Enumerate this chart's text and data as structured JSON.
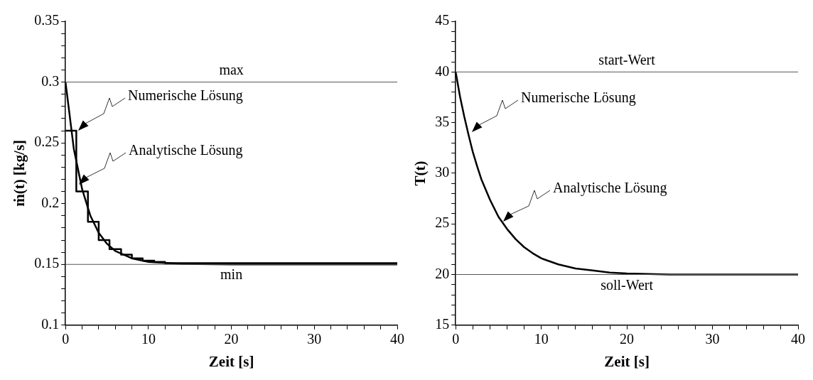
{
  "chart_data": [
    {
      "type": "line",
      "xlabel": "Zeit [s]",
      "ylabel": "ṁ(t) [kg/s]",
      "xlim": [
        0,
        40
      ],
      "ylim": [
        0.1,
        0.35
      ],
      "xticks": [
        0,
        {
          "value": 2,
          "label": null
        },
        {
          "value": 4,
          "label": null
        },
        {
          "value": 6,
          "label": null
        },
        {
          "value": 8,
          "label": null
        },
        10,
        {
          "value": 12,
          "label": null
        },
        {
          "value": 14,
          "label": null
        },
        {
          "value": 16,
          "label": null
        },
        {
          "value": 18,
          "label": null
        },
        20,
        {
          "value": 22,
          "label": null
        },
        {
          "value": 24,
          "label": null
        },
        {
          "value": 26,
          "label": null
        },
        {
          "value": 28,
          "label": null
        },
        30,
        {
          "value": 32,
          "label": null
        },
        {
          "value": 34,
          "label": null
        },
        {
          "value": 36,
          "label": null
        },
        {
          "value": 38,
          "label": null
        },
        40
      ],
      "yticks": [
        0.1,
        {
          "value": 0.11,
          "label": null
        },
        {
          "value": 0.12,
          "label": null
        },
        {
          "value": 0.13,
          "label": null
        },
        {
          "value": 0.14,
          "label": null
        },
        0.15,
        {
          "value": 0.16,
          "label": null
        },
        {
          "value": 0.17,
          "label": null
        },
        {
          "value": 0.18,
          "label": null
        },
        {
          "value": 0.19,
          "label": null
        },
        0.2,
        {
          "value": 0.21,
          "label": null
        },
        {
          "value": 0.22,
          "label": null
        },
        {
          "value": 0.23,
          "label": null
        },
        {
          "value": 0.24,
          "label": null
        },
        0.25,
        {
          "value": 0.26,
          "label": null
        },
        {
          "value": 0.27,
          "label": null
        },
        {
          "value": 0.28,
          "label": null
        },
        {
          "value": 0.29,
          "label": null
        },
        0.3,
        {
          "value": 0.31,
          "label": null
        },
        {
          "value": 0.32,
          "label": null
        },
        {
          "value": 0.33,
          "label": null
        },
        {
          "value": 0.34,
          "label": null
        },
        0.35
      ],
      "grid": false,
      "legend": false,
      "marker": "none",
      "line_style": "solid",
      "series": [
        {
          "type": "step",
          "color": "#000000",
          "x": [
            0,
            1.3,
            2.7,
            4,
            5.3,
            6.7,
            8,
            9.3,
            10.7,
            12,
            40
          ],
          "values": [
            0.26,
            0.21,
            0.185,
            0.17,
            0.1625,
            0.158,
            0.155,
            0.153,
            0.152,
            0.151,
            0.15
          ]
        },
        {
          "type": "line",
          "color": "#000000",
          "x": [
            0,
            1,
            2,
            3,
            4,
            5,
            6,
            8,
            10,
            14,
            20,
            40
          ],
          "values": [
            0.3,
            0.245,
            0.212,
            0.19,
            0.176,
            0.167,
            0.161,
            0.155,
            0.152,
            0.1505,
            0.15,
            0.15
          ]
        }
      ],
      "ref_lines": [
        {
          "axis": "y",
          "value": 0.3,
          "label": "max"
        },
        {
          "axis": "y",
          "value": 0.15,
          "label": "min"
        }
      ],
      "annotations": [
        "Numerische Lösung",
        "Analytische Lösung"
      ]
    },
    {
      "type": "line",
      "xlabel": "Zeit [s]",
      "ylabel": "T(t)",
      "xlim": [
        0,
        40
      ],
      "ylim": [
        15,
        45
      ],
      "xticks": [
        0,
        {
          "value": 2,
          "label": null
        },
        {
          "value": 4,
          "label": null
        },
        {
          "value": 6,
          "label": null
        },
        {
          "value": 8,
          "label": null
        },
        10,
        {
          "value": 12,
          "label": null
        },
        {
          "value": 14,
          "label": null
        },
        {
          "value": 16,
          "label": null
        },
        {
          "value": 18,
          "label": null
        },
        20,
        {
          "value": 22,
          "label": null
        },
        {
          "value": 24,
          "label": null
        },
        {
          "value": 26,
          "label": null
        },
        {
          "value": 28,
          "label": null
        },
        30,
        {
          "value": 32,
          "label": null
        },
        {
          "value": 34,
          "label": null
        },
        {
          "value": 36,
          "label": null
        },
        {
          "value": 38,
          "label": null
        },
        40
      ],
      "yticks": [
        15,
        {
          "value": 16,
          "label": null
        },
        {
          "value": 17,
          "label": null
        },
        {
          "value": 18,
          "label": null
        },
        {
          "value": 19,
          "label": null
        },
        20,
        {
          "value": 21,
          "label": null
        },
        {
          "value": 22,
          "label": null
        },
        {
          "value": 23,
          "label": null
        },
        {
          "value": 24,
          "label": null
        },
        25,
        {
          "value": 26,
          "label": null
        },
        {
          "value": 27,
          "label": null
        },
        {
          "value": 28,
          "label": null
        },
        {
          "value": 29,
          "label": null
        },
        30,
        {
          "value": 31,
          "label": null
        },
        {
          "value": 32,
          "label": null
        },
        {
          "value": 33,
          "label": null
        },
        {
          "value": 34,
          "label": null
        },
        35,
        {
          "value": 36,
          "label": null
        },
        {
          "value": 37,
          "label": null
        },
        {
          "value": 38,
          "label": null
        },
        {
          "value": 39,
          "label": null
        },
        40,
        {
          "value": 41,
          "label": null
        },
        {
          "value": 42,
          "label": null
        },
        {
          "value": 43,
          "label": null
        },
        {
          "value": 44,
          "label": null
        },
        45
      ],
      "grid": false,
      "legend": false,
      "marker": "none",
      "line_style": "solid",
      "series": [
        {
          "type": "line",
          "color": "#000000",
          "x": [
            0,
            0.5,
            1,
            1.5,
            2,
            2.5,
            3,
            4,
            5,
            6,
            7,
            8,
            9,
            10,
            12,
            14,
            16,
            18,
            20,
            25,
            30,
            40
          ],
          "values": [
            40,
            37.6,
            35.6,
            33.8,
            32.1,
            30.7,
            29.4,
            27.4,
            25.7,
            24.5,
            23.5,
            22.7,
            22.1,
            21.6,
            21,
            20.6,
            20.4,
            20.2,
            20.1,
            20,
            20,
            20
          ]
        }
      ],
      "ref_lines": [
        {
          "axis": "y",
          "value": 40,
          "label": "start-Wert"
        },
        {
          "axis": "y",
          "value": 20,
          "label": "soll-Wert"
        }
      ],
      "annotations": [
        "Numerische Lösung",
        "Analytische Lösung"
      ]
    }
  ]
}
